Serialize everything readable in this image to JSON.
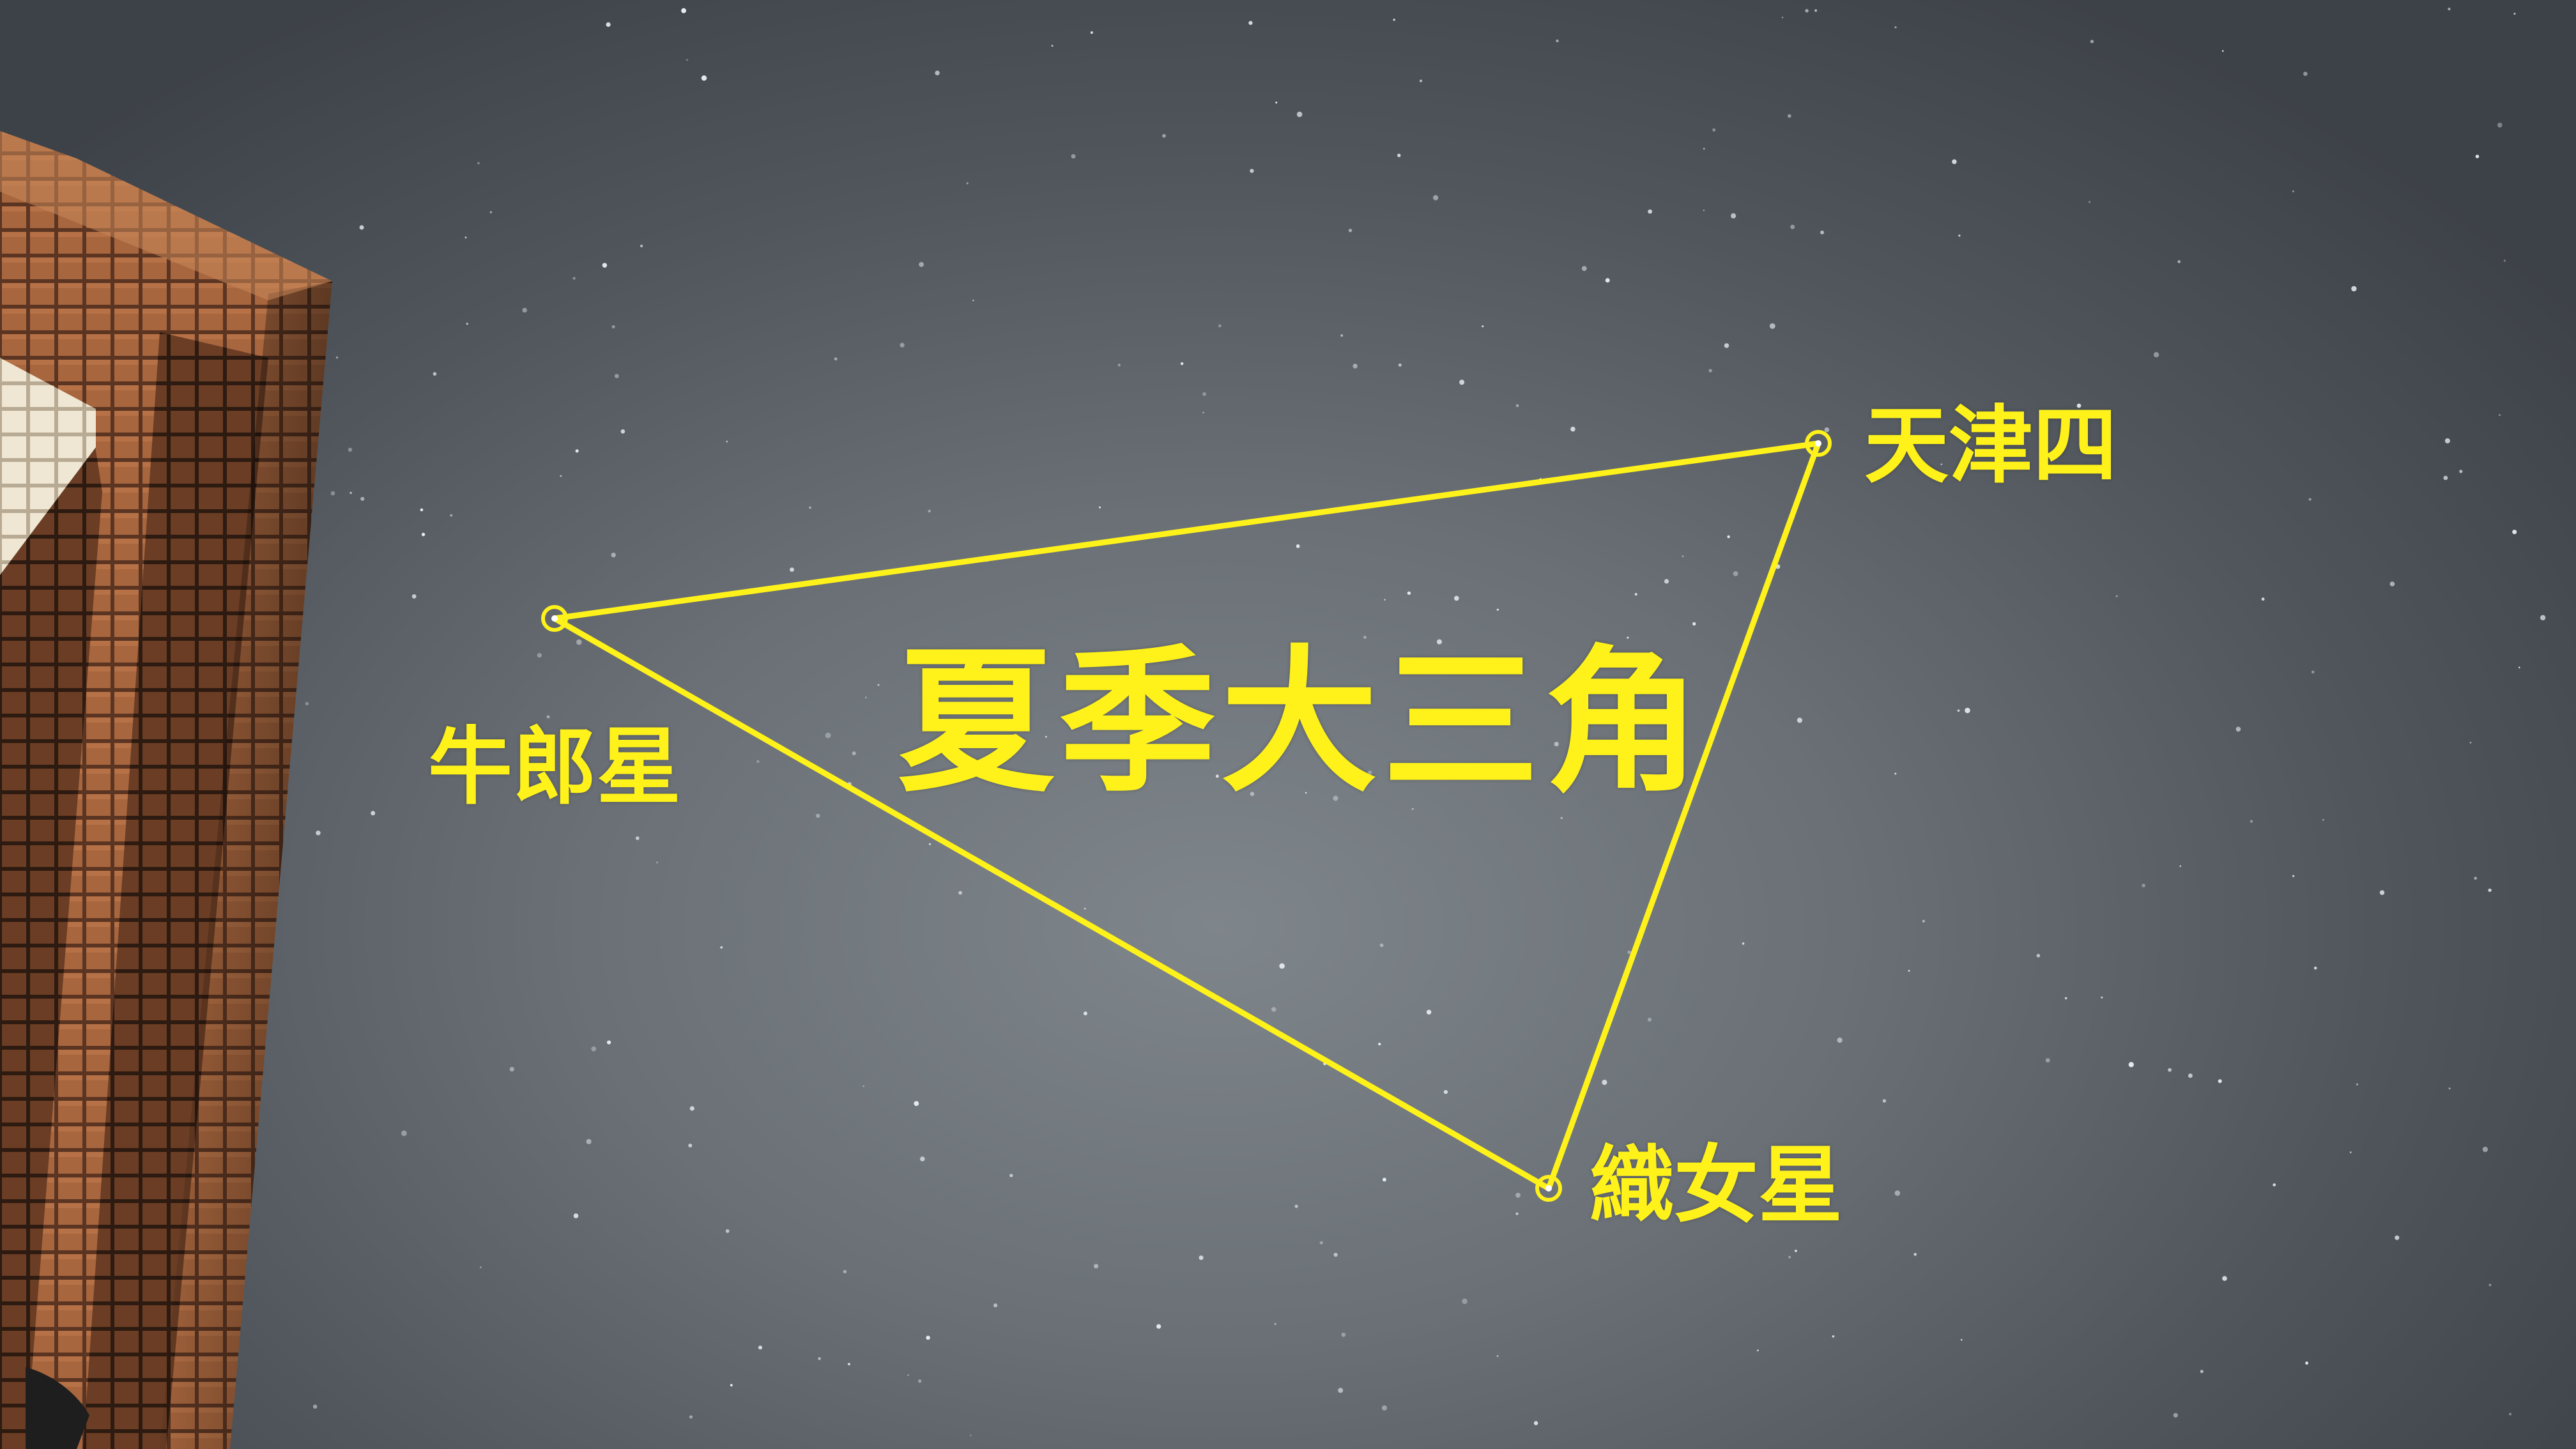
{
  "image": {
    "title": "夏季大三角",
    "stars": [
      {
        "name": "天津四"
      },
      {
        "name": "牛郎星"
      },
      {
        "name": "織女星"
      }
    ],
    "colors": {
      "annotation": "#fff21a",
      "sky": "#6a7076",
      "brick": "#9a5a36"
    }
  }
}
